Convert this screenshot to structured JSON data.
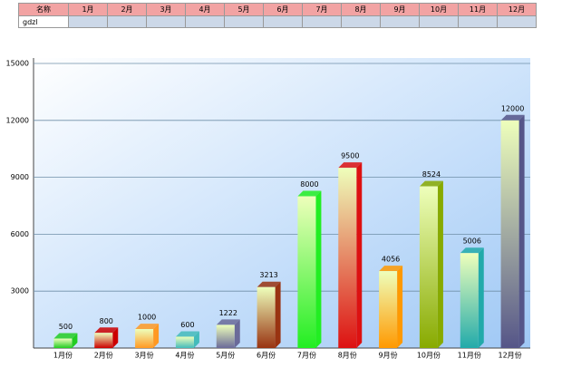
{
  "table": {
    "header": [
      "名称",
      "1月",
      "2月",
      "3月",
      "4月",
      "5月",
      "6月",
      "7月",
      "8月",
      "9月",
      "10月",
      "11月",
      "12月"
    ],
    "rows": [
      [
        "gdzl"
      ]
    ]
  },
  "chart_data": {
    "type": "bar",
    "categories": [
      "1月份",
      "2月份",
      "3月份",
      "4月份",
      "5月份",
      "6月份",
      "7月份",
      "8月份",
      "9月份",
      "10月份",
      "11月份",
      "12月份"
    ],
    "values": [
      500,
      800,
      1000,
      600,
      1222,
      3213,
      8000,
      9500,
      4056,
      8524,
      5006,
      12000
    ],
    "colors": [
      "#22cc22",
      "#cc0000",
      "#ff9922",
      "#44bbbb",
      "#6a6a99",
      "#993311",
      "#22ee22",
      "#dd1111",
      "#ff9900",
      "#88aa00",
      "#22aaaa",
      "#555588"
    ],
    "ylim": [
      0,
      15000
    ],
    "yticks": [
      3000,
      6000,
      9000,
      12000,
      15000
    ],
    "grid": true
  }
}
